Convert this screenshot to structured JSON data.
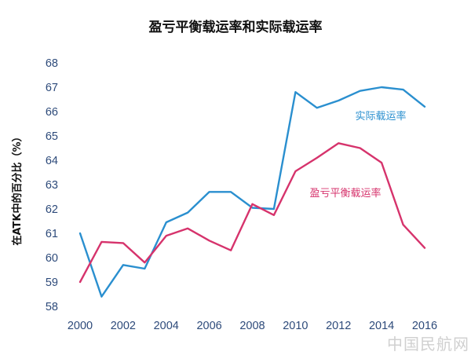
{
  "chart_data": {
    "type": "line",
    "title": "盈亏平衡载运率和实际载运率",
    "ylabel": "在ATK中的百分比（%）",
    "xlabel": "",
    "x": [
      2000,
      2001,
      2002,
      2003,
      2004,
      2005,
      2006,
      2007,
      2008,
      2009,
      2010,
      2011,
      2012,
      2013,
      2014,
      2015,
      2016
    ],
    "xlim": [
      2000,
      2016
    ],
    "ylim": [
      58,
      68
    ],
    "x_ticks": [
      "2000",
      "2002",
      "2004",
      "2006",
      "2008",
      "2010",
      "2012",
      "2014",
      "2016"
    ],
    "y_ticks": [
      "58",
      "59",
      "60",
      "61",
      "62",
      "63",
      "64",
      "65",
      "66",
      "67",
      "68"
    ],
    "grid": false,
    "series": [
      {
        "name": "实际载运率",
        "color": "#2a8fcf",
        "values": [
          61.0,
          58.4,
          59.7,
          59.55,
          61.45,
          61.85,
          62.7,
          62.7,
          62.05,
          62.0,
          66.8,
          66.15,
          66.45,
          66.85,
          67.0,
          66.9,
          66.2
        ]
      },
      {
        "name": "盈亏平衡载运率",
        "color": "#d6336c",
        "values": [
          59.0,
          60.65,
          60.6,
          59.8,
          60.9,
          61.2,
          60.7,
          60.3,
          62.2,
          61.75,
          63.55,
          64.1,
          64.7,
          64.5,
          63.9,
          61.35,
          60.4
        ]
      }
    ]
  },
  "watermark": "中国民航网"
}
